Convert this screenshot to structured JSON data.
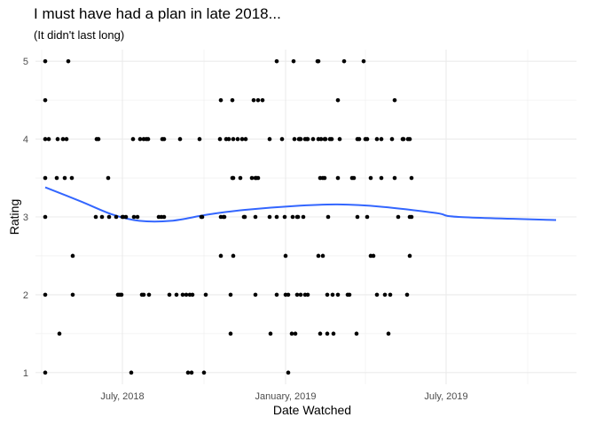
{
  "chart_data": {
    "type": "scatter",
    "title": "I must have had a plan in late 2018...",
    "subtitle": "(It didn't last long)",
    "xlabel": "Date Watched",
    "ylabel": "Rating",
    "x_ticks": [
      "July, 2018",
      "January, 2019",
      "July, 2019"
    ],
    "y_ticks": [
      1,
      2,
      3,
      4,
      5
    ],
    "ylim": [
      0.85,
      5.15
    ],
    "xlim": [
      "2018-03-25",
      "2019-11-25"
    ],
    "grid": true,
    "colors": {
      "points": "#000000",
      "trend": "#3366ff",
      "grid": "#ebebeb"
    },
    "points": [
      [
        "2018-04-05",
        5
      ],
      [
        "2018-04-05",
        4.5
      ],
      [
        "2018-04-05",
        4
      ],
      [
        "2018-04-05",
        3.5
      ],
      [
        "2018-04-05",
        3
      ],
      [
        "2018-04-05",
        2
      ],
      [
        "2018-04-05",
        1
      ],
      [
        "2018-04-09",
        4
      ],
      [
        "2018-04-18",
        3.5
      ],
      [
        "2018-04-19",
        4
      ],
      [
        "2018-04-21",
        1.5
      ],
      [
        "2018-04-25",
        4
      ],
      [
        "2018-04-27",
        3.5
      ],
      [
        "2018-04-29",
        4
      ],
      [
        "2018-05-01",
        5
      ],
      [
        "2018-05-05",
        3.5
      ],
      [
        "2018-05-06",
        2.5
      ],
      [
        "2018-05-06",
        2
      ],
      [
        "2018-06-01",
        3
      ],
      [
        "2018-06-02",
        4
      ],
      [
        "2018-06-04",
        4
      ],
      [
        "2018-06-08",
        3
      ],
      [
        "2018-06-15",
        3.5
      ],
      [
        "2018-06-16",
        3
      ],
      [
        "2018-06-24",
        3
      ],
      [
        "2018-06-26",
        2
      ],
      [
        "2018-06-28",
        2
      ],
      [
        "2018-06-30",
        2
      ],
      [
        "2018-07-01",
        3
      ],
      [
        "2018-07-02",
        3
      ],
      [
        "2018-07-05",
        3
      ],
      [
        "2018-07-11",
        1
      ],
      [
        "2018-07-13",
        4
      ],
      [
        "2018-07-14",
        3
      ],
      [
        "2018-07-18",
        3
      ],
      [
        "2018-07-21",
        4
      ],
      [
        "2018-07-23",
        2
      ],
      [
        "2018-07-25",
        4
      ],
      [
        "2018-07-25",
        2
      ],
      [
        "2018-07-28",
        4
      ],
      [
        "2018-07-30",
        4
      ],
      [
        "2018-07-31",
        2
      ],
      [
        "2018-08-11",
        3
      ],
      [
        "2018-08-14",
        3
      ],
      [
        "2018-08-15",
        4
      ],
      [
        "2018-08-17",
        4
      ],
      [
        "2018-08-17",
        3
      ],
      [
        "2018-08-23",
        2
      ],
      [
        "2018-08-31",
        2
      ],
      [
        "2018-09-04",
        4
      ],
      [
        "2018-09-07",
        2
      ],
      [
        "2018-09-11",
        2
      ],
      [
        "2018-09-13",
        1
      ],
      [
        "2018-09-15",
        2
      ],
      [
        "2018-09-17",
        1
      ],
      [
        "2018-09-18",
        2
      ],
      [
        "2018-09-26",
        4
      ],
      [
        "2018-09-28",
        3
      ],
      [
        "2018-09-29",
        3
      ],
      [
        "2018-10-01",
        1
      ],
      [
        "2018-10-03",
        2
      ],
      [
        "2018-10-19",
        4
      ],
      [
        "2018-10-20",
        4.5
      ],
      [
        "2018-10-20",
        3
      ],
      [
        "2018-10-20",
        2.5
      ],
      [
        "2018-10-23",
        3
      ],
      [
        "2018-10-24",
        3
      ],
      [
        "2018-10-26",
        4
      ],
      [
        "2018-10-29",
        4
      ],
      [
        "2018-10-31",
        2
      ],
      [
        "2018-10-31",
        1.5
      ],
      [
        "2018-11-02",
        4.5
      ],
      [
        "2018-11-02",
        3.5
      ],
      [
        "2018-11-03",
        4
      ],
      [
        "2018-11-03",
        3.5
      ],
      [
        "2018-11-03",
        2.5
      ],
      [
        "2018-11-08",
        4
      ],
      [
        "2018-11-11",
        3.5
      ],
      [
        "2018-11-13",
        4
      ],
      [
        "2018-11-15",
        3
      ],
      [
        "2018-11-16",
        3
      ],
      [
        "2018-11-17",
        4
      ],
      [
        "2018-11-24",
        3.5
      ],
      [
        "2018-11-26",
        4.5
      ],
      [
        "2018-11-28",
        3.5
      ],
      [
        "2018-11-28",
        3
      ],
      [
        "2018-11-28",
        2
      ],
      [
        "2018-11-29",
        3.5
      ],
      [
        "2018-12-01",
        4.5
      ],
      [
        "2018-12-01",
        3.5
      ],
      [
        "2018-12-06",
        4.5
      ],
      [
        "2018-12-14",
        4
      ],
      [
        "2018-12-14",
        3
      ],
      [
        "2018-12-15",
        1.5
      ],
      [
        "2018-12-22",
        5
      ],
      [
        "2018-12-22",
        3
      ],
      [
        "2018-12-22",
        2
      ],
      [
        "2018-12-28",
        4
      ],
      [
        "2018-12-31",
        3
      ],
      [
        "2019-01-01",
        2.5
      ],
      [
        "2019-01-01",
        2
      ],
      [
        "2019-01-04",
        1
      ],
      [
        "2019-01-04",
        2
      ],
      [
        "2019-01-08",
        1.5
      ],
      [
        "2019-01-09",
        3
      ],
      [
        "2019-01-10",
        5
      ],
      [
        "2019-01-11",
        4
      ],
      [
        "2019-01-12",
        1.5
      ],
      [
        "2019-01-14",
        3
      ],
      [
        "2019-01-14",
        2
      ],
      [
        "2019-01-15",
        3
      ],
      [
        "2019-01-16",
        4
      ],
      [
        "2019-01-17",
        4
      ],
      [
        "2019-01-18",
        4
      ],
      [
        "2019-01-18",
        2
      ],
      [
        "2019-01-21",
        3
      ],
      [
        "2019-01-23",
        4
      ],
      [
        "2019-01-23",
        2
      ],
      [
        "2019-01-25",
        4
      ],
      [
        "2019-01-26",
        4
      ],
      [
        "2019-01-26",
        2
      ],
      [
        "2019-02-01",
        4
      ],
      [
        "2019-02-06",
        5
      ],
      [
        "2019-02-07",
        5
      ],
      [
        "2019-02-07",
        4
      ],
      [
        "2019-02-07",
        2.5
      ],
      [
        "2019-02-09",
        3.5
      ],
      [
        "2019-02-09",
        1.5
      ],
      [
        "2019-02-10",
        4
      ],
      [
        "2019-02-12",
        3.5
      ],
      [
        "2019-02-12",
        2.5
      ],
      [
        "2019-02-14",
        4
      ],
      [
        "2019-02-14",
        3.5
      ],
      [
        "2019-02-15",
        4
      ],
      [
        "2019-02-17",
        2
      ],
      [
        "2019-02-17",
        1.5
      ],
      [
        "2019-02-18",
        3
      ],
      [
        "2019-02-20",
        4
      ],
      [
        "2019-02-22",
        4
      ],
      [
        "2019-02-23",
        2
      ],
      [
        "2019-02-24",
        1.5
      ],
      [
        "2019-03-01",
        4.5
      ],
      [
        "2019-03-01",
        3.5
      ],
      [
        "2019-03-01",
        2
      ],
      [
        "2019-03-03",
        4
      ],
      [
        "2019-03-08",
        5
      ],
      [
        "2019-03-12",
        2
      ],
      [
        "2019-03-14",
        2
      ],
      [
        "2019-03-17",
        3.5
      ],
      [
        "2019-03-19",
        3.5
      ],
      [
        "2019-03-22",
        1.5
      ],
      [
        "2019-03-23",
        3
      ],
      [
        "2019-03-23",
        4
      ],
      [
        "2019-03-25",
        4
      ],
      [
        "2019-03-30",
        5
      ],
      [
        "2019-04-01",
        4
      ],
      [
        "2019-04-03",
        4
      ],
      [
        "2019-04-03",
        3
      ],
      [
        "2019-04-07",
        3.5
      ],
      [
        "2019-04-07",
        2.5
      ],
      [
        "2019-04-10",
        2.5
      ],
      [
        "2019-04-14",
        4
      ],
      [
        "2019-04-14",
        2
      ],
      [
        "2019-04-19",
        4
      ],
      [
        "2019-04-19",
        3.5
      ],
      [
        "2019-04-23",
        2
      ],
      [
        "2019-04-27",
        1.5
      ],
      [
        "2019-04-29",
        2
      ],
      [
        "2019-05-01",
        4
      ],
      [
        "2019-05-04",
        3.5
      ],
      [
        "2019-05-04",
        4.5
      ],
      [
        "2019-05-08",
        3
      ],
      [
        "2019-05-13",
        4
      ],
      [
        "2019-05-14",
        4
      ],
      [
        "2019-05-18",
        2
      ],
      [
        "2019-05-19",
        4
      ],
      [
        "2019-05-21",
        3
      ],
      [
        "2019-05-21",
        2.5
      ],
      [
        "2019-05-21",
        4
      ],
      [
        "2019-05-23",
        3.5
      ],
      [
        "2019-05-23",
        3
      ]
    ],
    "trend": [
      [
        "2018-04-05",
        3.38
      ],
      [
        "2018-05-15",
        3.2
      ],
      [
        "2018-06-20",
        3.03
      ],
      [
        "2018-07-20",
        2.95
      ],
      [
        "2018-08-25",
        2.95
      ],
      [
        "2018-10-05",
        3.03
      ],
      [
        "2018-11-15",
        3.09
      ],
      [
        "2019-01-10",
        3.14
      ],
      [
        "2019-03-01",
        3.16
      ],
      [
        "2019-04-20",
        3.13
      ],
      [
        "2019-06-20",
        3.05
      ],
      [
        "2019-07-15",
        3.0
      ],
      [
        "2019-11-02",
        2.96
      ]
    ]
  }
}
